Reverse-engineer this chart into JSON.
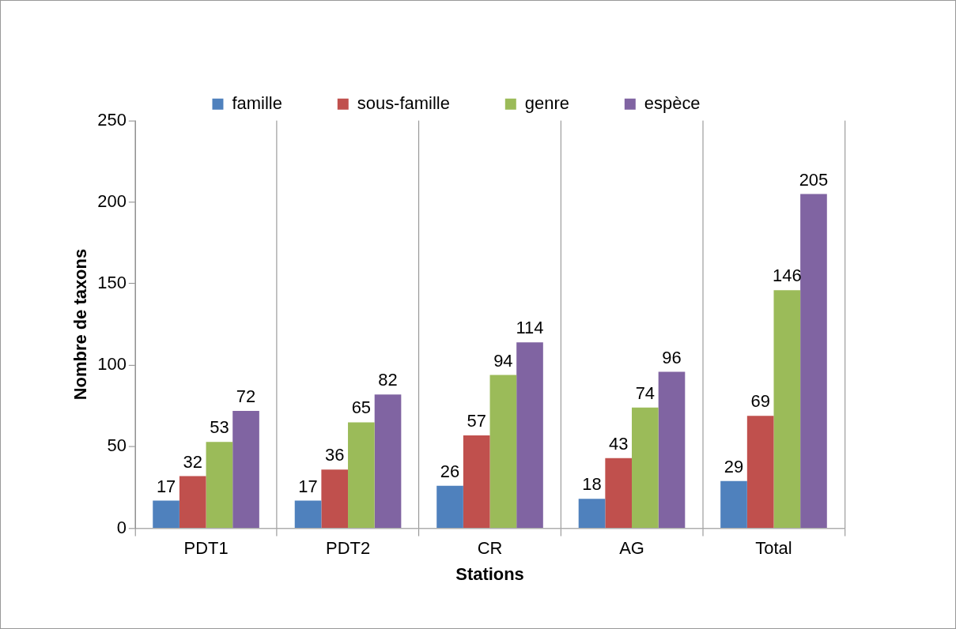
{
  "chart_data": {
    "type": "bar",
    "xlabel": "Stations",
    "ylabel": "Nombre de taxons",
    "categories": [
      "PDT1",
      "PDT2",
      "CR",
      "AG",
      "Total"
    ],
    "series": [
      {
        "name": "famille",
        "color": "#4f81bd",
        "values": [
          17,
          17,
          26,
          18,
          29
        ]
      },
      {
        "name": "sous-famille",
        "color": "#c0504d",
        "values": [
          32,
          36,
          57,
          43,
          69
        ]
      },
      {
        "name": "genre",
        "color": "#9bbb59",
        "values": [
          53,
          65,
          94,
          74,
          146
        ]
      },
      {
        "name": "espèce",
        "color": "#8064a2",
        "values": [
          72,
          82,
          114,
          96,
          205
        ]
      }
    ],
    "ylim": [
      0,
      250
    ],
    "yticks": [
      0,
      50,
      100,
      150,
      200,
      250
    ],
    "grid": "x",
    "legend": "top",
    "data_labels": true
  }
}
